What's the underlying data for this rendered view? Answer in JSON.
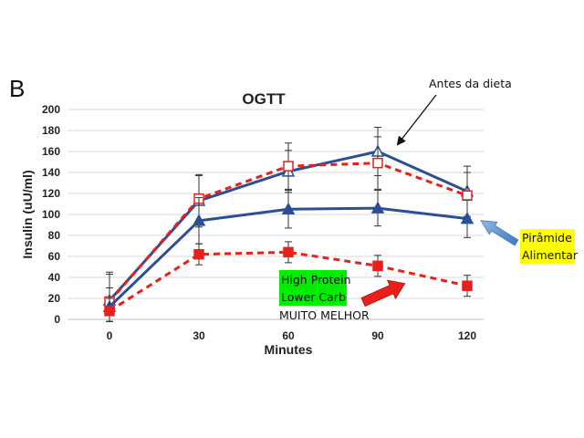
{
  "chart_data": {
    "type": "line",
    "panel_label": "B",
    "title": "OGTT",
    "xlabel": "Minutes",
    "ylabel": "Insulin (uU/ml)",
    "x": [
      0,
      30,
      60,
      90,
      120
    ],
    "x_tick_labels": [
      "0",
      "30",
      "60",
      "90",
      "120"
    ],
    "ylim": [
      0,
      200
    ],
    "y_ticks": [
      0,
      20,
      40,
      60,
      80,
      100,
      120,
      140,
      160,
      180,
      200
    ],
    "y_tick_labels": [
      "0",
      "20",
      "40",
      "60",
      "80",
      "100",
      "120",
      "140",
      "160",
      "180",
      "200"
    ],
    "grid": true,
    "series": [
      {
        "values": [
          18,
          113,
          141,
          160,
          122
        ],
        "error": [
          27,
          25,
          20,
          23,
          24
        ],
        "color": "#2b4f95",
        "line_style": "solid",
        "marker": "triangle-open"
      },
      {
        "values": [
          17,
          115,
          146,
          149,
          118
        ],
        "error": [
          26,
          22,
          22,
          25,
          22
        ],
        "color": "#e8201a",
        "line_style": "dashed",
        "marker": "square-open"
      },
      {
        "values": [
          12,
          94,
          105,
          106,
          96
        ],
        "error": [
          18,
          22,
          18,
          17,
          18
        ],
        "color": "#2b4f95",
        "line_style": "solid",
        "marker": "triangle-filled"
      },
      {
        "values": [
          8,
          62,
          64,
          51,
          32
        ],
        "error": [
          12,
          10,
          10,
          10,
          10
        ],
        "color": "#e8201a",
        "line_style": "dashed",
        "marker": "square-filled"
      }
    ],
    "annotations": {
      "before_diet": "Antes da dieta",
      "pyramid_line1": "Pirâmide",
      "pyramid_line2": "Alimentar",
      "high_protein": "High Protein",
      "lower_carb": "Lower Carb",
      "much_better": "MUITO MELHOR"
    },
    "colors": {
      "blue": "#2b4f95",
      "red": "#e8201a",
      "highlight_green": "#00ee00",
      "highlight_yellow": "#ffff00",
      "light_blue_arrow": "#5b9bd5"
    }
  }
}
